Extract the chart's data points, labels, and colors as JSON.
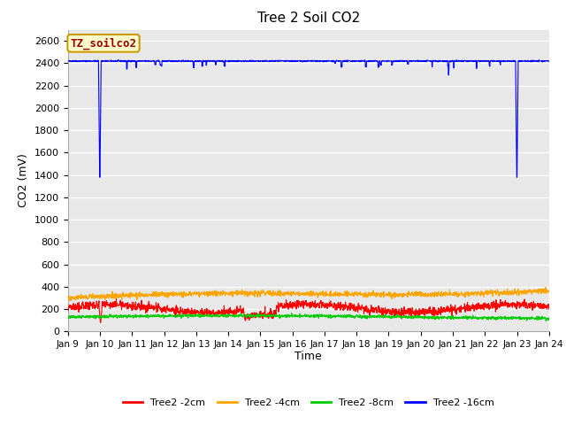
{
  "title": "Tree 2 Soil CO2",
  "ylabel": "CO2 (mV)",
  "xlabel": "Time",
  "legend_label": "TZ_soilco2",
  "ylim": [
    0,
    2700
  ],
  "yticks": [
    0,
    200,
    400,
    600,
    800,
    1000,
    1200,
    1400,
    1600,
    1800,
    2000,
    2200,
    2400,
    2600
  ],
  "xtick_labels": [
    "Jan 9",
    "Jan 10",
    "Jan 11",
    "Jan 12",
    "Jan 13",
    "Jan 14",
    "Jan 15",
    "Jan 16",
    "Jan 17",
    "Jan 18",
    "Jan 19",
    "Jan 20",
    "Jan 21",
    "Jan 22",
    "Jan 23",
    "Jan 24"
  ],
  "series_labels": [
    "Tree2 -2cm",
    "Tree2 -4cm",
    "Tree2 -8cm",
    "Tree2 -16cm"
  ],
  "series_colors": [
    "#ff0000",
    "#ffa500",
    "#00cc00",
    "#0000ff"
  ],
  "fig_bg_color": "#ffffff",
  "plot_bg_color": "#e8e8e8",
  "n_points": 2000,
  "seed": 42
}
